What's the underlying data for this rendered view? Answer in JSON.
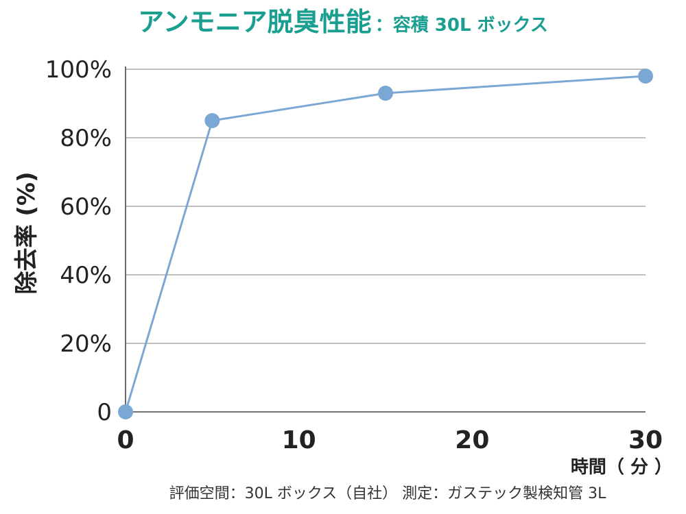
{
  "chart_data": {
    "type": "line",
    "title": "アンモニア脱臭性能",
    "subtitle": "：容積 30L ボックス",
    "xlabel": "時間（ 分 ）",
    "ylabel": "除去率 (%)",
    "footnote": "評価空間：30L ボックス（自社） 測定：ガステック製検知管 3L",
    "x": [
      0,
      5,
      15,
      30
    ],
    "series": [
      {
        "values": [
          0,
          85,
          93,
          98
        ]
      }
    ],
    "xlim": [
      0,
      30
    ],
    "ylim": [
      0,
      100
    ],
    "xticks": [
      0,
      10,
      20,
      30
    ],
    "xtick_labels": [
      "0",
      "10",
      "20",
      "30"
    ],
    "yticks": [
      0,
      20,
      40,
      60,
      80,
      100
    ],
    "ytick_labels": [
      "0",
      "20%",
      "40%",
      "60%",
      "80%",
      "100%"
    ],
    "grid": "horizontal",
    "colors": {
      "line": "#7ba7d4",
      "title": "#1a9e8f",
      "grid": "#999999",
      "axis": "#444444"
    }
  }
}
